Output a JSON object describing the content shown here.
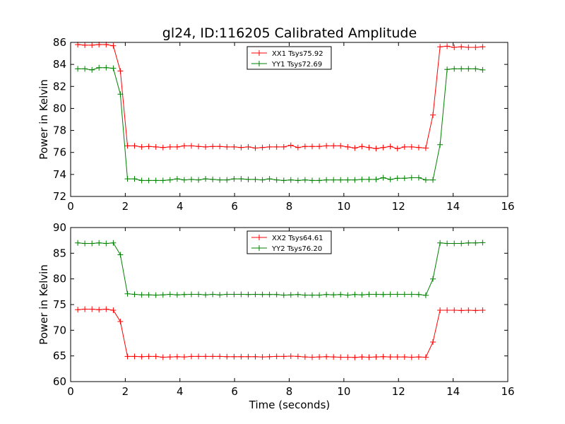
{
  "title": "gl24, ID:116205 Calibrated Amplitude",
  "xlabel": "Time (seconds)",
  "chart_data": [
    {
      "type": "line",
      "title": "gl24, ID:116205 Calibrated Amplitude",
      "xlabel": "",
      "ylabel": "Power in Kelvin",
      "xlim": [
        0,
        16
      ],
      "ylim": [
        72,
        86
      ],
      "xticks": [
        "0",
        "2",
        "4",
        "6",
        "8",
        "10",
        "12",
        "14",
        "16"
      ],
      "yticks": [
        "72",
        "74",
        "76",
        "78",
        "80",
        "82",
        "84",
        "86"
      ],
      "legend_position": "top-center",
      "x": [
        0.26,
        0.52,
        0.78,
        1.04,
        1.3,
        1.56,
        1.82,
        2.08,
        2.34,
        2.6,
        2.86,
        3.12,
        3.38,
        3.64,
        3.9,
        4.16,
        4.42,
        4.68,
        4.94,
        5.2,
        5.46,
        5.72,
        5.98,
        6.24,
        6.5,
        6.76,
        7.02,
        7.28,
        7.54,
        7.8,
        8.06,
        8.32,
        8.58,
        8.84,
        9.1,
        9.36,
        9.62,
        9.88,
        10.14,
        10.4,
        10.66,
        10.92,
        11.18,
        11.44,
        11.7,
        11.96,
        12.22,
        12.48,
        12.74,
        13.0,
        13.26,
        13.52,
        13.78,
        14.04,
        14.3,
        14.56,
        14.82,
        15.08
      ],
      "series": [
        {
          "name": "XX1 Tsys75.92",
          "color": "#ff0000",
          "values": [
            85.8,
            85.75,
            85.75,
            85.8,
            85.8,
            85.7,
            83.4,
            76.6,
            76.6,
            76.5,
            76.55,
            76.5,
            76.45,
            76.5,
            76.5,
            76.6,
            76.6,
            76.55,
            76.5,
            76.55,
            76.55,
            76.5,
            76.5,
            76.45,
            76.5,
            76.4,
            76.45,
            76.5,
            76.5,
            76.5,
            76.65,
            76.45,
            76.55,
            76.55,
            76.55,
            76.6,
            76.6,
            76.6,
            76.5,
            76.4,
            76.55,
            76.45,
            76.35,
            76.45,
            76.55,
            76.35,
            76.5,
            76.5,
            76.45,
            76.4,
            79.4,
            85.6,
            85.65,
            85.55,
            85.6,
            85.55,
            85.55,
            85.6
          ]
        },
        {
          "name": "YY1 Tsys72.69",
          "color": "#008000",
          "values": [
            83.6,
            83.6,
            83.5,
            83.7,
            83.7,
            83.65,
            81.3,
            73.6,
            73.6,
            73.45,
            73.45,
            73.45,
            73.45,
            73.5,
            73.6,
            73.5,
            73.55,
            73.5,
            73.6,
            73.55,
            73.5,
            73.5,
            73.6,
            73.6,
            73.55,
            73.55,
            73.5,
            73.6,
            73.5,
            73.45,
            73.5,
            73.45,
            73.5,
            73.45,
            73.45,
            73.5,
            73.5,
            73.5,
            73.5,
            73.5,
            73.55,
            73.55,
            73.55,
            73.7,
            73.55,
            73.65,
            73.65,
            73.7,
            73.7,
            73.5,
            73.5,
            76.7,
            83.55,
            83.6,
            83.6,
            83.6,
            83.6,
            83.5
          ]
        }
      ]
    },
    {
      "type": "line",
      "title": "",
      "xlabel": "Time (seconds)",
      "ylabel": "Power in Kelvin",
      "xlim": [
        0,
        16
      ],
      "ylim": [
        60,
        90
      ],
      "xticks": [
        "0",
        "2",
        "4",
        "6",
        "8",
        "10",
        "12",
        "14",
        "16"
      ],
      "yticks": [
        "60",
        "65",
        "70",
        "75",
        "80",
        "85",
        "90"
      ],
      "legend_position": "top-center",
      "x": [
        0.26,
        0.52,
        0.78,
        1.04,
        1.3,
        1.56,
        1.82,
        2.08,
        2.34,
        2.6,
        2.86,
        3.12,
        3.38,
        3.64,
        3.9,
        4.16,
        4.42,
        4.68,
        4.94,
        5.2,
        5.46,
        5.72,
        5.98,
        6.24,
        6.5,
        6.76,
        7.02,
        7.28,
        7.54,
        7.8,
        8.06,
        8.32,
        8.58,
        8.84,
        9.1,
        9.36,
        9.62,
        9.88,
        10.14,
        10.4,
        10.66,
        10.92,
        11.18,
        11.44,
        11.7,
        11.96,
        12.22,
        12.48,
        12.74,
        13.0,
        13.26,
        13.52,
        13.78,
        14.04,
        14.3,
        14.56,
        14.82,
        15.08
      ],
      "series": [
        {
          "name": "XX2 Tsys64.61",
          "color": "#ff0000",
          "values": [
            74.0,
            74.1,
            74.1,
            74.0,
            74.1,
            73.9,
            71.7,
            64.9,
            64.9,
            64.85,
            64.9,
            64.9,
            64.75,
            64.8,
            64.85,
            64.8,
            64.9,
            64.9,
            64.9,
            64.9,
            64.9,
            64.85,
            64.85,
            64.85,
            64.85,
            64.85,
            64.8,
            64.85,
            64.9,
            64.9,
            64.95,
            64.9,
            64.8,
            64.75,
            64.8,
            64.85,
            64.8,
            64.75,
            64.75,
            64.7,
            64.8,
            64.75,
            64.8,
            64.85,
            64.8,
            64.8,
            64.8,
            64.75,
            64.8,
            64.75,
            67.7,
            73.9,
            73.9,
            73.9,
            73.85,
            73.9,
            73.85,
            73.9
          ]
        },
        {
          "name": "YY2 Tsys76.20",
          "color": "#008000",
          "values": [
            87.0,
            86.9,
            86.9,
            87.0,
            86.9,
            87.0,
            84.7,
            77.1,
            77.0,
            76.9,
            76.9,
            76.85,
            76.9,
            77.0,
            76.9,
            76.95,
            77.0,
            77.0,
            76.9,
            77.0,
            76.9,
            77.0,
            77.0,
            77.0,
            76.95,
            77.0,
            76.95,
            76.95,
            76.95,
            76.85,
            76.9,
            76.95,
            76.85,
            76.85,
            76.85,
            76.95,
            76.9,
            76.95,
            76.85,
            76.95,
            76.9,
            77.0,
            77.0,
            76.95,
            77.0,
            77.0,
            77.0,
            77.0,
            76.95,
            76.8,
            80.0,
            87.0,
            86.9,
            86.9,
            86.9,
            87.0,
            87.0,
            87.05
          ]
        }
      ]
    }
  ]
}
